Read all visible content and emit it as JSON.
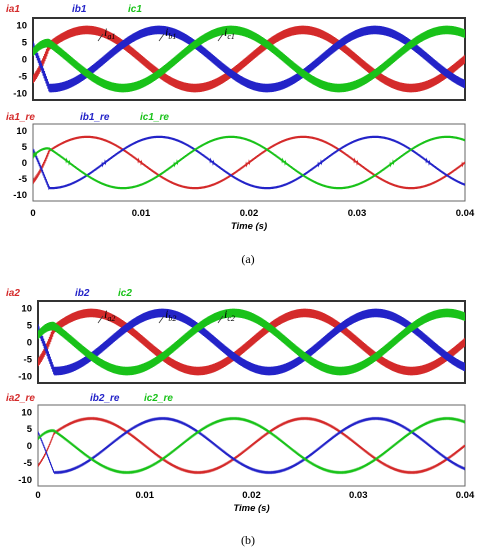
{
  "colors": {
    "a": "#d42a2a",
    "b": "#2323c8",
    "c": "#19c219"
  },
  "figures": [
    {
      "caption": "(a)"
    },
    {
      "caption": "(b)"
    }
  ],
  "chart_data": [
    {
      "type": "line",
      "panel": "a-top",
      "series": [
        {
          "name": "ia1",
          "phase_deg": 0
        },
        {
          "name": "ib1",
          "phase_deg": -120
        },
        {
          "name": "ic1",
          "phase_deg": 120
        }
      ],
      "amplitude": 8.5,
      "frequency_hz": 50,
      "ripple_pp": 2.5,
      "annotations": [
        {
          "base": "i",
          "sub": "a1"
        },
        {
          "base": "i",
          "sub": "b1"
        },
        {
          "base": "i",
          "sub": "c1"
        }
      ],
      "xlim": [
        0,
        0.04
      ],
      "ylim": [
        -12,
        12
      ],
      "yticks": [
        "10",
        "5",
        "0",
        "-5",
        "-10"
      ]
    },
    {
      "type": "line",
      "panel": "a-bottom",
      "series": [
        {
          "name": "ia1_re",
          "phase_deg": 0
        },
        {
          "name": "ib1_re",
          "phase_deg": -120
        },
        {
          "name": "ic1_re",
          "phase_deg": 120
        }
      ],
      "amplitude": 8,
      "frequency_hz": 50,
      "ripple_pp": 0.6,
      "xlim": [
        0,
        0.04
      ],
      "ylim": [
        -12,
        12
      ],
      "yticks": [
        "10",
        "5",
        "0",
        "-5",
        "-10"
      ],
      "xticks": [
        "0",
        "0.01",
        "0.02",
        "0.03",
        "0.04"
      ],
      "xlabel": "Time (s)"
    },
    {
      "type": "line",
      "panel": "b-top",
      "series": [
        {
          "name": "ia2",
          "phase_deg": 0
        },
        {
          "name": "ib2",
          "phase_deg": -120
        },
        {
          "name": "ic2",
          "phase_deg": 120
        }
      ],
      "amplitude": 8.5,
      "frequency_hz": 50,
      "ripple_pp": 2.5,
      "annotations": [
        {
          "base": "i",
          "sub": "a2"
        },
        {
          "base": "i",
          "sub": "b2"
        },
        {
          "base": "i",
          "sub": "c2"
        }
      ],
      "xlim": [
        0,
        0.04
      ],
      "ylim": [
        -12,
        12
      ],
      "yticks": [
        "10",
        "5",
        "0",
        "-5",
        "-10"
      ]
    },
    {
      "type": "line",
      "panel": "b-bottom",
      "series": [
        {
          "name": "ia2_re",
          "phase_deg": 0
        },
        {
          "name": "ib2_re",
          "phase_deg": -120
        },
        {
          "name": "ic2_re",
          "phase_deg": 120
        }
      ],
      "amplitude": 8,
      "frequency_hz": 50,
      "ripple_pp": 0.3,
      "xlim": [
        0,
        0.04
      ],
      "ylim": [
        -12,
        12
      ],
      "yticks": [
        "10",
        "5",
        "0",
        "-5",
        "-10"
      ],
      "xticks": [
        "0",
        "0.01",
        "0.02",
        "0.03",
        "0.04"
      ],
      "xlabel": "Time (s)"
    }
  ]
}
